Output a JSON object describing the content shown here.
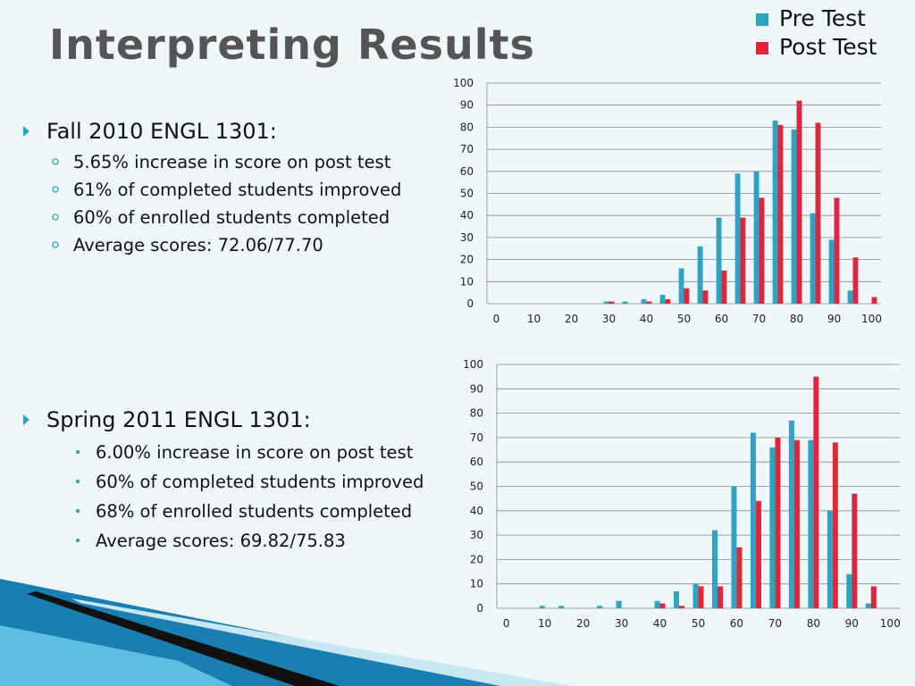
{
  "title": "Interpreting Results",
  "sections": [
    {
      "heading": "Fall 2010 ENGL 1301:",
      "items": [
        "5.65% increase in score on post test",
        "61% of completed students improved",
        "60% of enrolled students completed",
        "Average scores: 72.06/77.70"
      ]
    },
    {
      "heading": "Spring 2011 ENGL 1301:",
      "items": [
        "6.00% increase in score on post test",
        "60% of completed students improved",
        "68% of enrolled students completed",
        "Average scores: 69.82/75.83"
      ]
    }
  ],
  "chart_data": [
    {
      "type": "bar",
      "categories": [
        0,
        null,
        10,
        null,
        20,
        null,
        30,
        null,
        40,
        null,
        50,
        null,
        60,
        null,
        70,
        null,
        80,
        null,
        90,
        null,
        100
      ],
      "series": [
        {
          "name": "Pre Test",
          "color": "#2fa3c4",
          "values": [
            0,
            0,
            0,
            0,
            0,
            0,
            1,
            1,
            2,
            4,
            16,
            26,
            39,
            59,
            60,
            83,
            79,
            41,
            29,
            6,
            0
          ]
        },
        {
          "name": "Post Test",
          "color": "#e0263a",
          "values": [
            0,
            0,
            0,
            0,
            0,
            0,
            1,
            0,
            1,
            2,
            7,
            6,
            15,
            39,
            48,
            81,
            92,
            82,
            48,
            21,
            3
          ]
        }
      ],
      "ylim": [
        0,
        100
      ],
      "yticks": [
        0,
        10,
        20,
        30,
        40,
        50,
        60,
        70,
        80,
        90,
        100
      ],
      "grid": true
    },
    {
      "type": "bar",
      "categories": [
        0,
        null,
        10,
        null,
        20,
        null,
        30,
        null,
        40,
        null,
        50,
        null,
        60,
        null,
        70,
        null,
        80,
        null,
        90,
        null,
        100
      ],
      "series": [
        {
          "color": "#2fa3c4",
          "values": [
            0,
            0,
            1,
            1,
            0,
            1,
            3,
            0,
            3,
            7,
            10,
            32,
            50,
            72,
            66,
            77,
            69,
            40,
            14,
            2,
            0
          ]
        },
        {
          "color": "#e0263a",
          "values": [
            0,
            0,
            0,
            0,
            0,
            0,
            0,
            0,
            2,
            1,
            9,
            9,
            25,
            44,
            70,
            69,
            95,
            68,
            47,
            9,
            0
          ]
        }
      ],
      "ylim": [
        0,
        100
      ],
      "yticks": [
        0,
        10,
        20,
        30,
        40,
        50,
        60,
        70,
        80,
        90,
        100
      ],
      "grid": true
    }
  ]
}
